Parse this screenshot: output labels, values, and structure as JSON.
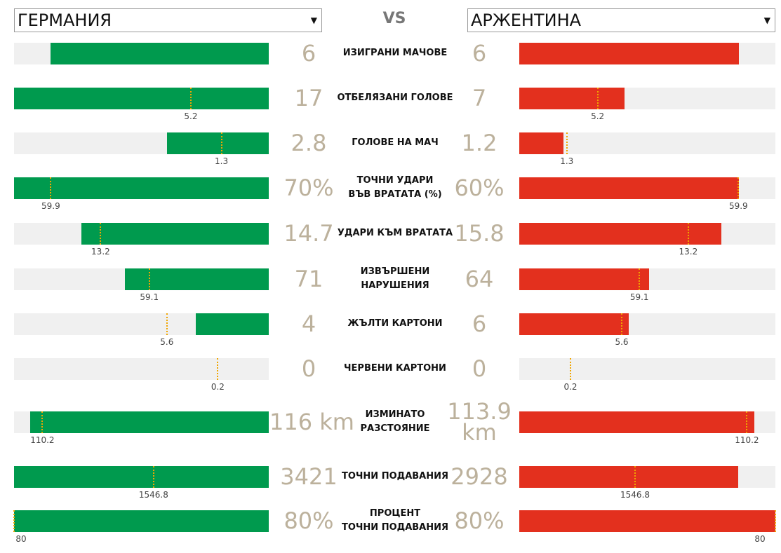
{
  "header": {
    "team_left": "ГЕРМАНИЯ",
    "vs": "VS",
    "team_right": "АРЖЕНТИНА"
  },
  "colors": {
    "left": "#009a4e",
    "right": "#e3301e",
    "average": "#f0a500",
    "track": "#f0f0f0"
  },
  "rows": [
    {
      "label": [
        "ИЗИГРАНИ МАЧОВЕ"
      ],
      "left": 6,
      "right": 6,
      "xlim": [
        0,
        7
      ]
    },
    {
      "label": [
        "ОТБЕЛЯЗАНИ ГОЛОВЕ"
      ],
      "left": 17,
      "right": 7,
      "average": 5.2,
      "xlim": [
        0,
        17
      ]
    },
    {
      "label": [
        "ГОЛОВЕ НА МАЧ"
      ],
      "left": 2.8,
      "right": 1.2,
      "average": 1.3,
      "xlim": [
        0,
        7
      ]
    },
    {
      "label": [
        "ТОЧНИ УДАРИ",
        "ВЪВ ВРАТАТА (%)"
      ],
      "left": 70,
      "left_label": "70%",
      "right": 60,
      "right_label": "60%",
      "average": 59.9,
      "xlim": [
        0,
        70
      ]
    },
    {
      "label": [
        "УДАРИ КЪМ ВРАТАТА"
      ],
      "left": 14.7,
      "right": 15.8,
      "average": 13.2,
      "xlim": [
        0,
        20
      ]
    },
    {
      "label": [
        "ИЗВЪРШЕНИ НАРУШЕНИЯ"
      ],
      "left": 71,
      "right": 64,
      "average": 59.1,
      "xlim": [
        0,
        126
      ]
    },
    {
      "label": [
        "ЖЪЛТИ КАРТОНИ"
      ],
      "left": 4,
      "right": 6,
      "average": 5.6,
      "xlim": [
        0,
        14
      ]
    },
    {
      "label": [
        "ЧЕРВЕНИ КАРТОНИ"
      ],
      "left": 0,
      "right": 0,
      "average": 0.2,
      "xlim": [
        0,
        1
      ]
    },
    {
      "label": [
        "ИЗМИНАТО",
        "РАЗСТОЯНИЕ"
      ],
      "left": 116,
      "left_label": "116 km",
      "right": 113.9,
      "right_label": "113.9 km",
      "average": 110.2,
      "xlim": [
        0,
        124
      ]
    },
    {
      "label": [
        "ТОЧНИ ПОДАВАНИЯ"
      ],
      "left": 3421,
      "right": 2928,
      "average": 1546.8,
      "xlim": [
        0,
        3421
      ]
    },
    {
      "label": [
        "ПРОЦЕНТ",
        "ТОЧНИ ПОДАВАНИЯ"
      ],
      "left": 80,
      "left_label": "80%",
      "right": 80,
      "right_label": "80%",
      "average": 80,
      "xlim": [
        0,
        80
      ]
    }
  ]
}
